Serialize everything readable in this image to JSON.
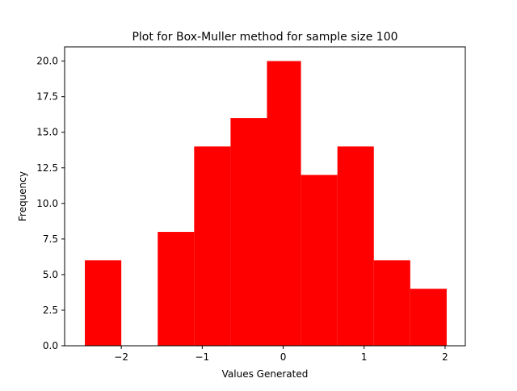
{
  "chart_data": {
    "type": "bar",
    "title": "Plot for Box-Muller method for sample size 100",
    "xlabel": "Values Generated",
    "ylabel": "Frequency",
    "xlim": [
      -2.7,
      2.25
    ],
    "ylim": [
      0,
      21
    ],
    "grid": false,
    "bar_color": "#ff0000",
    "bins": [
      {
        "x0": -2.45,
        "x1": -2.0,
        "value": 6
      },
      {
        "x0": -2.0,
        "x1": -1.55,
        "value": 0
      },
      {
        "x0": -1.55,
        "x1": -1.1,
        "value": 8
      },
      {
        "x0": -1.1,
        "x1": -0.65,
        "value": 14
      },
      {
        "x0": -0.65,
        "x1": -0.2,
        "value": 16
      },
      {
        "x0": -0.2,
        "x1": 0.22,
        "value": 20
      },
      {
        "x0": 0.22,
        "x1": 0.67,
        "value": 12
      },
      {
        "x0": 0.67,
        "x1": 1.12,
        "value": 14
      },
      {
        "x0": 1.12,
        "x1": 1.57,
        "value": 6
      },
      {
        "x0": 1.57,
        "x1": 2.02,
        "value": 4
      }
    ],
    "x_ticks": [
      {
        "value": -2,
        "label": "−2"
      },
      {
        "value": -1,
        "label": "−1"
      },
      {
        "value": 0,
        "label": "0"
      },
      {
        "value": 1,
        "label": "1"
      },
      {
        "value": 2,
        "label": "2"
      }
    ],
    "y_ticks": [
      {
        "value": 0,
        "label": "0.0"
      },
      {
        "value": 2.5,
        "label": "2.5"
      },
      {
        "value": 5,
        "label": "5.0"
      },
      {
        "value": 7.5,
        "label": "7.5"
      },
      {
        "value": 10,
        "label": "10.0"
      },
      {
        "value": 12.5,
        "label": "12.5"
      },
      {
        "value": 15,
        "label": "15.0"
      },
      {
        "value": 17.5,
        "label": "17.5"
      },
      {
        "value": 20,
        "label": "20.0"
      }
    ]
  }
}
